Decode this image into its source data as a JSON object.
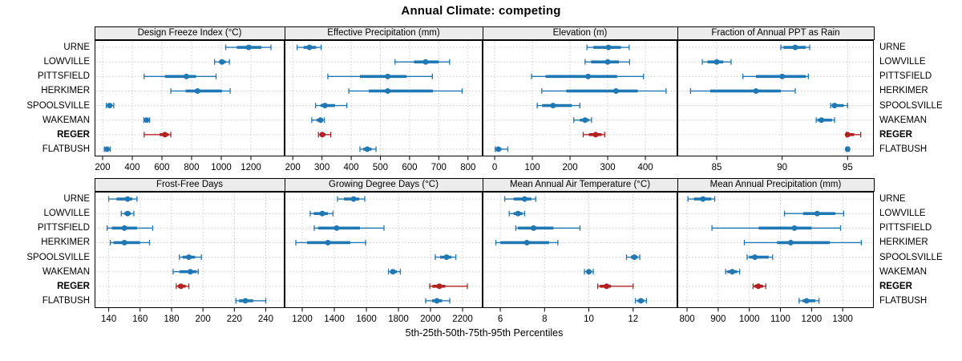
{
  "chart_data": {
    "type": "trellis-percentile-dotplot",
    "title": "Annual Climate: competing",
    "caption": "5th-25th-50th-75th-95th Percentiles",
    "percentiles": [
      5,
      25,
      50,
      75,
      95
    ],
    "locations": [
      "URNE",
      "LOWVILLE",
      "PITTSFIELD",
      "HERKIMER",
      "SPOOLSVILLE",
      "WAKEMAN",
      "REGER",
      "FLATBUSH"
    ],
    "highlight_location": "REGER",
    "colors": {
      "series": "#1f77b4",
      "highlight": "#b22222",
      "strip_bg": "#ececec",
      "grid": "#c9c9c9",
      "border": "#000000"
    },
    "layout": {
      "rows": 2,
      "cols": 4,
      "grid": "dashed",
      "row_labels_both_sides": true,
      "legend": "none"
    },
    "panels": [
      {
        "title": "Design Freeze Index (°C)",
        "xlim": [
          146,
          1427
        ],
        "ticks": [
          200,
          400,
          600,
          800,
          1000,
          1200
        ],
        "values": {
          "URNE": [
            1030,
            1105,
            1185,
            1270,
            1335
          ],
          "LOWVILLE": [
            955,
            985,
            1005,
            1030,
            1055
          ],
          "PITTSFIELD": [
            480,
            620,
            765,
            830,
            965
          ],
          "HERKIMER": [
            660,
            760,
            840,
            1005,
            1060
          ],
          "SPOOLSVILLE": [
            225,
            235,
            248,
            262,
            275
          ],
          "WAKEMAN": [
            478,
            488,
            497,
            507,
            517
          ],
          "REGER": [
            480,
            585,
            620,
            645,
            660
          ],
          "FLATBUSH": [
            212,
            222,
            230,
            240,
            252
          ]
        }
      },
      {
        "title": "Effective Precipitation (mm)",
        "xlim": [
          172,
          850
        ],
        "ticks": [
          200,
          300,
          400,
          500,
          600,
          700,
          800
        ],
        "values": {
          "URNE": [
            215,
            237,
            257,
            280,
            297
          ],
          "LOWVILLE": [
            550,
            615,
            655,
            700,
            737
          ],
          "PITTSFIELD": [
            320,
            430,
            525,
            590,
            678
          ],
          "HERKIMER": [
            392,
            460,
            525,
            680,
            780
          ],
          "SPOOLSVILLE": [
            278,
            295,
            310,
            345,
            385
          ],
          "WAKEMAN": [
            265,
            282,
            295,
            302,
            308
          ],
          "REGER": [
            288,
            294,
            301,
            312,
            330
          ],
          "FLATBUSH": [
            430,
            441,
            455,
            470,
            485
          ]
        }
      },
      {
        "title": "Elevation (m)",
        "xlim": [
          -32,
          485
        ],
        "ticks": [
          0,
          100,
          200,
          300,
          400
        ],
        "values": {
          "URNE": [
            245,
            262,
            302,
            335,
            357
          ],
          "LOWVILLE": [
            240,
            256,
            300,
            330,
            358
          ],
          "PITTSFIELD": [
            98,
            135,
            248,
            325,
            395
          ],
          "HERKIMER": [
            125,
            190,
            322,
            380,
            455
          ],
          "SPOOLSVILLE": [
            113,
            126,
            155,
            205,
            226
          ],
          "WAKEMAN": [
            210,
            226,
            240,
            250,
            257
          ],
          "REGER": [
            235,
            250,
            268,
            284,
            292
          ],
          "FLATBUSH": [
            2,
            5,
            10,
            18,
            35
          ]
        }
      },
      {
        "title": "Fraction of Annual PPT as Rain",
        "xlim": [
          82,
          97
        ],
        "ticks": [
          85,
          90,
          95
        ],
        "values": {
          "URNE": [
            89.9,
            90.1,
            91.0,
            91.8,
            92.1
          ],
          "LOWVILLE": [
            83.9,
            84.3,
            85.0,
            85.5,
            86.1
          ],
          "PITTSFIELD": [
            87.0,
            88.0,
            90.0,
            91.8,
            92.0
          ],
          "HERKIMER": [
            83.0,
            84.5,
            88.0,
            89.9,
            91.0
          ],
          "SPOOLSVILLE": [
            93.7,
            93.8,
            94.0,
            94.7,
            95.0
          ],
          "WAKEMAN": [
            92.6,
            92.7,
            93.0,
            93.8,
            94.0
          ],
          "REGER": [
            94.9,
            94.95,
            95.0,
            95.5,
            96.0
          ],
          "FLATBUSH": [
            94.9,
            95.0,
            95.0,
            95.05,
            95.1
          ]
        }
      },
      {
        "title": "Frost-Free Days",
        "xlim": [
          131,
          252
        ],
        "ticks": [
          140,
          160,
          180,
          200,
          220,
          240
        ],
        "values": {
          "URNE": [
            140,
            145,
            152,
            155,
            158
          ],
          "LOWVILLE": [
            148,
            150,
            152,
            154,
            156
          ],
          "PITTSFIELD": [
            139,
            142,
            150,
            158,
            168
          ],
          "HERKIMER": [
            141,
            143,
            150,
            160,
            166
          ],
          "SPOOLSVILLE": [
            185,
            187,
            191,
            195,
            199
          ],
          "WAKEMAN": [
            181,
            185,
            192,
            196,
            197
          ],
          "REGER": [
            183,
            184,
            186,
            189,
            191
          ],
          "FLATBUSH": [
            221,
            223,
            227,
            232,
            240
          ]
        }
      },
      {
        "title": "Growing Degree Days (°C)",
        "xlim": [
          1090,
          2325
        ],
        "ticks": [
          1200,
          1400,
          1600,
          1800,
          2000,
          2200
        ],
        "values": {
          "URNE": [
            1420,
            1460,
            1520,
            1555,
            1590
          ],
          "LOWVILLE": [
            1250,
            1272,
            1325,
            1360,
            1392
          ],
          "PITTSFIELD": [
            1275,
            1300,
            1415,
            1560,
            1710
          ],
          "HERKIMER": [
            1160,
            1230,
            1360,
            1500,
            1595
          ],
          "SPOOLSVILLE": [
            2030,
            2060,
            2100,
            2130,
            2158
          ],
          "WAKEMAN": [
            1738,
            1752,
            1765,
            1790,
            1812
          ],
          "REGER": [
            1995,
            2012,
            2055,
            2092,
            2230
          ],
          "FLATBUSH": [
            1970,
            2010,
            2040,
            2072,
            2120
          ]
        }
      },
      {
        "title": "Mean Annual Air Temperature (°C)",
        "xlim": [
          5.2,
          14
        ],
        "ticks": [
          6,
          8,
          10,
          12
        ],
        "values": {
          "URNE": [
            6.2,
            6.6,
            7.1,
            7.4,
            7.6
          ],
          "LOWVILLE": [
            6.4,
            6.6,
            6.8,
            7.0,
            7.1
          ],
          "PITTSFIELD": [
            6.7,
            6.8,
            7.5,
            8.4,
            9.6
          ],
          "HERKIMER": [
            5.8,
            6.0,
            7.2,
            8.2,
            8.6
          ],
          "SPOOLSVILLE": [
            11.7,
            11.9,
            12.05,
            12.2,
            12.3
          ],
          "WAKEMAN": [
            9.8,
            9.9,
            10.0,
            10.1,
            10.2
          ],
          "REGER": [
            10.4,
            10.5,
            10.8,
            11.0,
            12.0
          ],
          "FLATBUSH": [
            12.1,
            12.2,
            12.35,
            12.5,
            12.6
          ]
        }
      },
      {
        "title": "Mean Annual Precipitation (mm)",
        "xlim": [
          769,
          1400
        ],
        "ticks": [
          800,
          900,
          1000,
          1100,
          1200,
          1300
        ],
        "values": {
          "URNE": [
            803,
            822,
            851,
            878,
            889
          ],
          "LOWVILLE": [
            1113,
            1173,
            1218,
            1276,
            1303
          ],
          "PITTSFIELD": [
            880,
            1030,
            1145,
            1200,
            1293
          ],
          "HERKIMER": [
            984,
            1089,
            1133,
            1259,
            1360
          ],
          "SPOOLSVILLE": [
            993,
            1000,
            1018,
            1062,
            1075
          ],
          "WAKEMAN": [
            924,
            929,
            945,
            961,
            969
          ],
          "REGER": [
            1012,
            1016,
            1029,
            1044,
            1053
          ],
          "FLATBUSH": [
            1160,
            1171,
            1184,
            1212,
            1224
          ]
        }
      }
    ]
  }
}
